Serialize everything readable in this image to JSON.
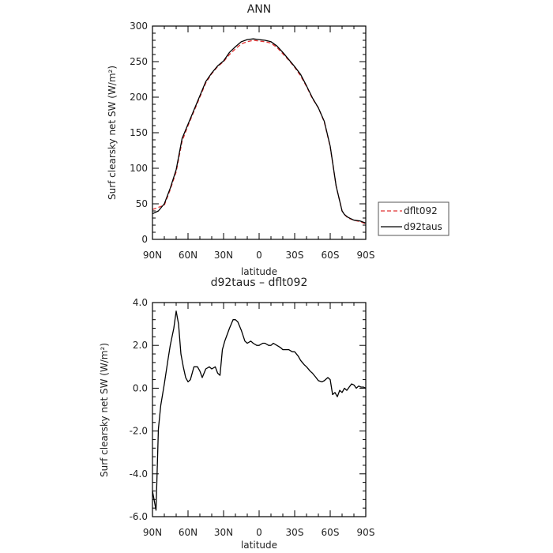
{
  "chart_data": [
    {
      "type": "line",
      "title": "ANN",
      "xlabel": "latitude",
      "ylabel": "Surf clearsky net SW (W/m²)",
      "xlim": [
        90,
        -90
      ],
      "ylim": [
        0,
        300
      ],
      "x_tick_values": [
        90,
        60,
        30,
        0,
        -30,
        -60,
        -90
      ],
      "x_tick_labels": [
        "90N",
        "60N",
        "30N",
        "0",
        "30S",
        "60S",
        "90S"
      ],
      "y_tick_values": [
        0,
        50,
        100,
        150,
        200,
        250,
        300
      ],
      "y_tick_labels": [
        "0",
        "50",
        "100",
        "150",
        "200",
        "250",
        "300"
      ],
      "legend": {
        "position": "right",
        "entries": [
          "dflt092",
          "d92taus"
        ]
      },
      "series": [
        {
          "name": "dflt092",
          "color": "#e03030",
          "dash": "dashed",
          "x": [
            90,
            85,
            80,
            75,
            70,
            65,
            60,
            55,
            50,
            45,
            40,
            35,
            30,
            25,
            20,
            15,
            10,
            5,
            0,
            -5,
            -10,
            -15,
            -20,
            -25,
            -30,
            -35,
            -40,
            -45,
            -50,
            -55,
            -60,
            -65,
            -70,
            -72,
            -75,
            -80,
            -85,
            -90
          ],
          "y": [
            42,
            45,
            48,
            70,
            95,
            138,
            160,
            180,
            200,
            220,
            233,
            243,
            250,
            260,
            268,
            275,
            278,
            280,
            279,
            278,
            276,
            270,
            261,
            252,
            242,
            230,
            215,
            198,
            185,
            165,
            130,
            75,
            40,
            35,
            30,
            27,
            25,
            22
          ]
        },
        {
          "name": "d92taus",
          "color": "#000000",
          "dash": "solid",
          "x": [
            90,
            85,
            80,
            75,
            70,
            65,
            60,
            55,
            50,
            45,
            40,
            35,
            30,
            25,
            20,
            15,
            10,
            5,
            0,
            -5,
            -10,
            -15,
            -20,
            -25,
            -30,
            -35,
            -40,
            -45,
            -50,
            -55,
            -60,
            -65,
            -70,
            -72,
            -75,
            -80,
            -85,
            -90
          ],
          "y": [
            36,
            40,
            50,
            72,
            98,
            142,
            162,
            182,
            202,
            222,
            234,
            244,
            251,
            263,
            271,
            278,
            281,
            282,
            281,
            280,
            278,
            272,
            263,
            253,
            243,
            232,
            216,
            199,
            185,
            166,
            131,
            75,
            40,
            35,
            31,
            27,
            26,
            23
          ]
        }
      ]
    },
    {
      "type": "line",
      "title": "d92taus – dflt092",
      "xlabel": "latitude",
      "ylabel": "Surf clearsky net SW (W/m²)",
      "xlim": [
        90,
        -90
      ],
      "ylim": [
        -6,
        4
      ],
      "x_tick_values": [
        90,
        60,
        30,
        0,
        -30,
        -60,
        -90
      ],
      "x_tick_labels": [
        "90N",
        "60N",
        "30N",
        "0",
        "30S",
        "60S",
        "90S"
      ],
      "y_tick_values": [
        4,
        2,
        0,
        -2,
        -4,
        -6
      ],
      "y_tick_labels": [
        "4.0",
        "2.0",
        "0.0",
        "-2.0",
        "-4.0",
        "-6.0"
      ],
      "series": [
        {
          "color": "#000000",
          "dash": "solid",
          "x": [
            90,
            87,
            85,
            83,
            80,
            77,
            75,
            72,
            70,
            68,
            66,
            64,
            62,
            60,
            58,
            55,
            52,
            50,
            48,
            45,
            42,
            40,
            37,
            35,
            33,
            31,
            29,
            27,
            25,
            22,
            20,
            18,
            15,
            12,
            10,
            7,
            5,
            2,
            0,
            -3,
            -5,
            -8,
            -10,
            -12,
            -15,
            -18,
            -20,
            -22,
            -25,
            -28,
            -30,
            -33,
            -35,
            -38,
            -40,
            -43,
            -45,
            -48,
            -50,
            -53,
            -55,
            -58,
            -60,
            -62,
            -64,
            -66,
            -68,
            -70,
            -72,
            -74,
            -76,
            -78,
            -80,
            -82,
            -84,
            -86,
            -88,
            -90
          ],
          "y": [
            -4.8,
            -5.7,
            -1.9,
            -0.8,
            0.2,
            1.3,
            2.0,
            2.8,
            3.6,
            3.0,
            1.6,
            1.0,
            0.5,
            0.3,
            0.4,
            1.0,
            1.0,
            0.8,
            0.5,
            0.9,
            1.0,
            0.9,
            1.0,
            0.7,
            0.6,
            1.8,
            2.2,
            2.5,
            2.8,
            3.2,
            3.2,
            3.1,
            2.7,
            2.2,
            2.1,
            2.2,
            2.1,
            2.0,
            2.0,
            2.1,
            2.1,
            2.0,
            2.0,
            2.1,
            2.0,
            1.9,
            1.8,
            1.8,
            1.8,
            1.7,
            1.7,
            1.5,
            1.3,
            1.1,
            1.0,
            0.8,
            0.7,
            0.5,
            0.35,
            0.3,
            0.35,
            0.5,
            0.4,
            -0.3,
            -0.2,
            -0.4,
            -0.1,
            -0.2,
            0.0,
            -0.1,
            0.05,
            0.2,
            0.15,
            0.0,
            0.1,
            0.05,
            0.05,
            0.0
          ]
        }
      ]
    }
  ]
}
